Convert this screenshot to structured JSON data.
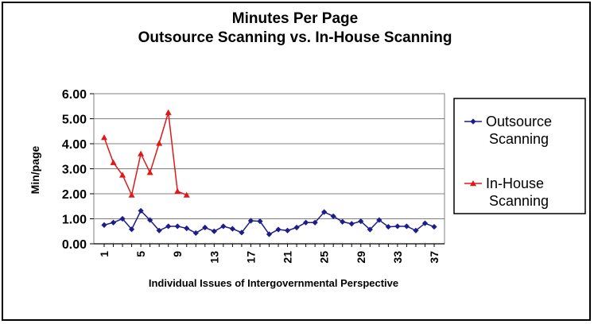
{
  "chart_data": {
    "type": "line",
    "title": "Minutes Per Page",
    "subtitle": "Outsource Scanning vs. In-House Scanning",
    "xlabel": "Individual Issues of Intergovernmental Perspective",
    "ylabel": "Min/page",
    "ylim": [
      0,
      6
    ],
    "yticks": [
      "0.00",
      "1.00",
      "2.00",
      "3.00",
      "4.00",
      "5.00",
      "6.00"
    ],
    "xticks": [
      "1",
      "5",
      "9",
      "13",
      "17",
      "21",
      "25",
      "29",
      "33",
      "37"
    ],
    "grid": true,
    "legend_position": "right",
    "series": [
      {
        "name": "Outsource Scanning",
        "legend_lines": [
          "Outsource",
          "Scanning"
        ],
        "color": "#1c1c8c",
        "marker": "diamond",
        "x": [
          1,
          2,
          3,
          4,
          5,
          6,
          7,
          8,
          9,
          10,
          11,
          12,
          13,
          14,
          15,
          16,
          17,
          18,
          19,
          20,
          21,
          22,
          23,
          24,
          25,
          26,
          27,
          28,
          29,
          30,
          31,
          32,
          33,
          34,
          35,
          36,
          37
        ],
        "values": [
          0.75,
          0.85,
          1.0,
          0.58,
          1.32,
          0.95,
          0.53,
          0.7,
          0.7,
          0.62,
          0.43,
          0.65,
          0.5,
          0.7,
          0.6,
          0.45,
          0.92,
          0.9,
          0.38,
          0.57,
          0.53,
          0.65,
          0.85,
          0.85,
          1.27,
          1.1,
          0.88,
          0.8,
          0.9,
          0.57,
          0.95,
          0.68,
          0.7,
          0.7,
          0.53,
          0.82,
          0.68
        ]
      },
      {
        "name": "In-House Scanning",
        "legend_lines": [
          "In-House",
          "Scanning"
        ],
        "color": "#e01818",
        "marker": "triangle",
        "x": [
          1,
          2,
          3,
          4,
          5,
          6,
          7,
          8,
          9,
          10
        ],
        "values": [
          4.25,
          3.25,
          2.75,
          1.95,
          3.6,
          2.85,
          4.02,
          5.25,
          2.1,
          1.95
        ]
      }
    ]
  }
}
